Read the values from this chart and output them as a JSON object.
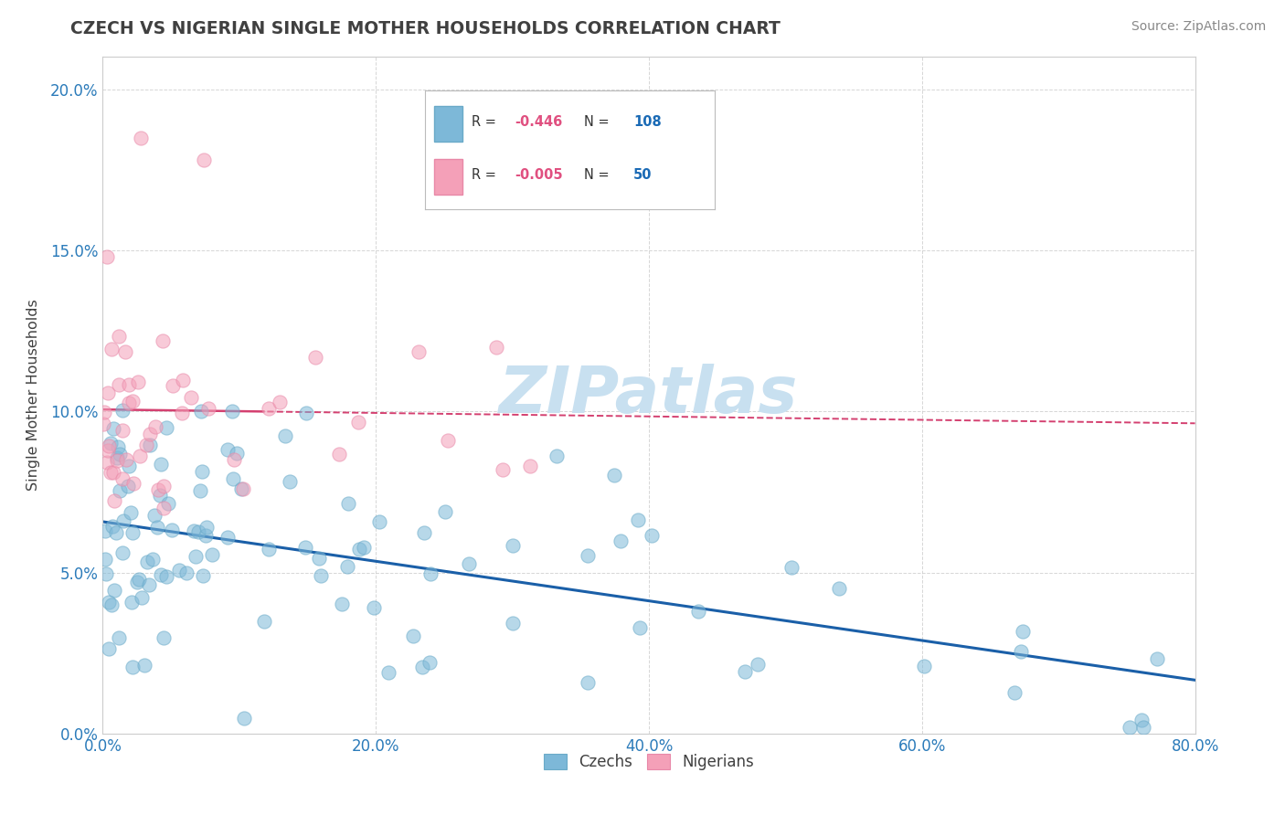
{
  "title": "CZECH VS NIGERIAN SINGLE MOTHER HOUSEHOLDS CORRELATION CHART",
  "source": "Source: ZipAtlas.com",
  "xlim": [
    0.0,
    0.8
  ],
  "ylim": [
    0.0,
    0.21
  ],
  "x_tick_vals": [
    0.0,
    0.2,
    0.4,
    0.6,
    0.8
  ],
  "y_tick_vals": [
    0.0,
    0.05,
    0.1,
    0.15,
    0.2
  ],
  "czech_R": -0.446,
  "czech_N": 108,
  "nigerian_R": -0.005,
  "nigerian_N": 50,
  "czech_color": "#7db8d8",
  "czech_edge_color": "#6aaac8",
  "nigerian_color": "#f4a0b8",
  "nigerian_edge_color": "#e888a8",
  "czech_line_color": "#1a5fa8",
  "nigerian_line_color": "#d44070",
  "watermark_color": "#c8e0f0",
  "background_color": "#ffffff",
  "grid_color": "#cccccc",
  "title_color": "#404040",
  "axis_label_color": "#2b7bba",
  "source_color": "#888888",
  "legend_text_color": "#333333",
  "legend_R_color": "#e05080",
  "legend_N_color": "#1a6ab5"
}
